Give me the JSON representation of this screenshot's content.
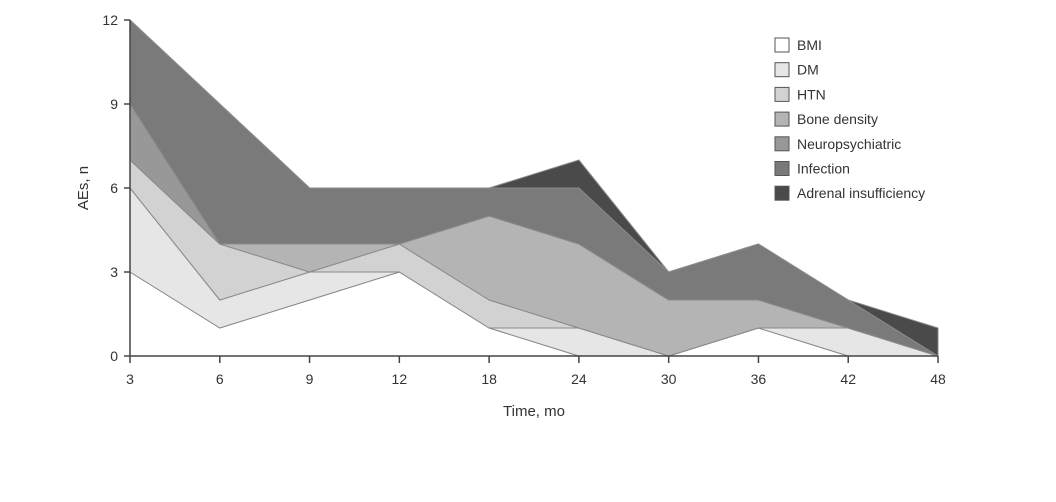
{
  "chart_data": {
    "type": "area",
    "stacked": true,
    "x": [
      "3",
      "6",
      "9",
      "12",
      "18",
      "24",
      "30",
      "36",
      "42",
      "48"
    ],
    "xlabel": "Time, mo",
    "ylabel": "AEs, n",
    "ylim": [
      0,
      12
    ],
    "yticks": [
      "0",
      "3",
      "6",
      "9",
      "12"
    ],
    "legend_position": "top-right",
    "grid": false,
    "series": [
      {
        "name": "BMI",
        "color": "#ffffff",
        "values": [
          3,
          1,
          2,
          3,
          1,
          0,
          0,
          1,
          0,
          0
        ]
      },
      {
        "name": "DM",
        "color": "#e6e6e6",
        "values": [
          3,
          1,
          1,
          0,
          0,
          1,
          0,
          0,
          1,
          0
        ]
      },
      {
        "name": "HTN",
        "color": "#d2d2d2",
        "values": [
          1,
          2,
          0,
          1,
          1,
          0,
          0,
          0,
          0,
          0
        ]
      },
      {
        "name": "Bone density",
        "color": "#b4b4b4",
        "values": [
          0,
          0,
          1,
          0,
          3,
          3,
          2,
          1,
          0,
          0
        ]
      },
      {
        "name": "Neuropsychiatric",
        "color": "#989898",
        "values": [
          2,
          0,
          0,
          0,
          0,
          0,
          0,
          0,
          0,
          0
        ]
      },
      {
        "name": "Infection",
        "color": "#7a7a7a",
        "values": [
          3,
          5,
          2,
          2,
          1,
          2,
          1,
          2,
          1,
          0
        ]
      },
      {
        "name": "Adrenal insufficiency",
        "color": "#4a4a4a",
        "values": [
          0,
          0,
          0,
          0,
          0,
          1,
          0,
          0,
          0,
          1
        ]
      }
    ]
  }
}
